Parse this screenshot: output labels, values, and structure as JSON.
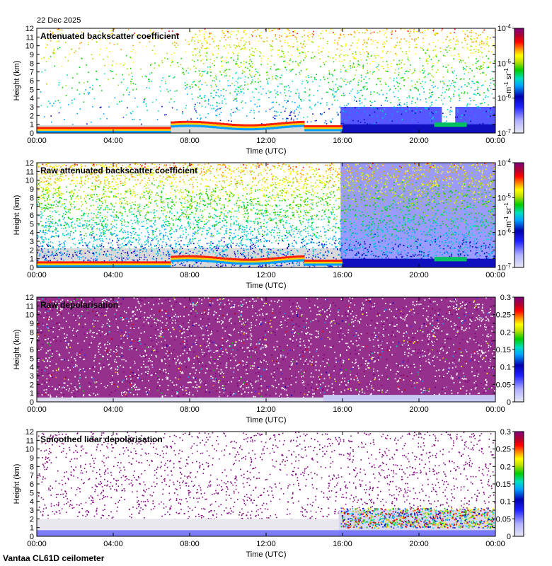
{
  "date": "22 Dec 2025",
  "footer": "Vantaa CL61D ceilometer",
  "chart_data": [
    {
      "type": "heatmap",
      "title": "Attenuated backscatter coefficient",
      "xlabel": "Time (UTC)",
      "ylabel": "Height (km)",
      "x_ticks": [
        "00:00",
        "04:00",
        "08:00",
        "12:00",
        "16:00",
        "20:00",
        "00:00"
      ],
      "y_ticks": [
        "0",
        "1",
        "2",
        "3",
        "4",
        "5",
        "6",
        "7",
        "8",
        "9",
        "10",
        "11",
        "12"
      ],
      "ylim": [
        0,
        12
      ],
      "colorbar": {
        "scale": "log",
        "range": [
          1e-07,
          0.0001
        ],
        "ticks": [
          "10",
          "10",
          "10",
          "10"
        ],
        "exponents": [
          "-7",
          "-6",
          "-5",
          "-4"
        ],
        "unit": "m",
        "unit_exp1": "-1",
        "unit2": "sr",
        "unit_exp2": "-1"
      }
    },
    {
      "type": "heatmap",
      "title": "Raw attenuated backscatter coefficient",
      "xlabel": "Time (UTC)",
      "ylabel": "Height (km)",
      "x_ticks": [
        "00:00",
        "04:00",
        "08:00",
        "12:00",
        "16:00",
        "20:00",
        "00:00"
      ],
      "y_ticks": [
        "0",
        "1",
        "2",
        "3",
        "4",
        "5",
        "6",
        "7",
        "8",
        "9",
        "10",
        "11",
        "12"
      ],
      "ylim": [
        0,
        12
      ],
      "colorbar": {
        "scale": "log",
        "range": [
          1e-07,
          0.0001
        ],
        "ticks": [
          "10",
          "10",
          "10",
          "10"
        ],
        "exponents": [
          "-7",
          "-6",
          "-5",
          "-4"
        ],
        "unit": "m",
        "unit_exp1": "-1",
        "unit2": "sr",
        "unit_exp2": "-1"
      }
    },
    {
      "type": "heatmap",
      "title": "Raw depolarisation",
      "xlabel": "Time (UTC)",
      "ylabel": "Height (km)",
      "x_ticks": [
        "00:00",
        "04:00",
        "08:00",
        "12:00",
        "16:00",
        "20:00",
        "00:00"
      ],
      "y_ticks": [
        "0",
        "1",
        "2",
        "3",
        "4",
        "5",
        "6",
        "7",
        "8",
        "9",
        "10",
        "11",
        "12"
      ],
      "ylim": [
        0,
        12
      ],
      "colorbar": {
        "scale": "linear",
        "range": [
          0,
          0.3
        ],
        "ticks": [
          "0",
          "0.05",
          "0.1",
          "0.15",
          "0.2",
          "0.25",
          "0.3"
        ]
      }
    },
    {
      "type": "heatmap",
      "title": "Smoothed lidar depolarisation",
      "xlabel": "Time (UTC)",
      "ylabel": "Height (km)",
      "x_ticks": [
        "00:00",
        "04:00",
        "08:00",
        "12:00",
        "16:00",
        "20:00",
        "00:00"
      ],
      "y_ticks": [
        "0",
        "1",
        "2",
        "3",
        "4",
        "5",
        "6",
        "7",
        "8",
        "9",
        "10",
        "11",
        "12"
      ],
      "ylim": [
        0,
        12
      ],
      "colorbar": {
        "scale": "linear",
        "range": [
          0,
          0.3
        ],
        "ticks": [
          "0",
          "0.05",
          "0.1",
          "0.15",
          "0.2",
          "0.25",
          "0.3"
        ]
      }
    }
  ],
  "colors": {
    "colormap": [
      "#e6e6f2",
      "#a0a0ff",
      "#3030ff",
      "#0000c0",
      "#00a0ff",
      "#00e0c0",
      "#00d000",
      "#a0e000",
      "#ffff00",
      "#ff9900",
      "#ff0000",
      "#c00000",
      "#900040",
      "#800080"
    ],
    "no_data": "#d9d9d9"
  }
}
